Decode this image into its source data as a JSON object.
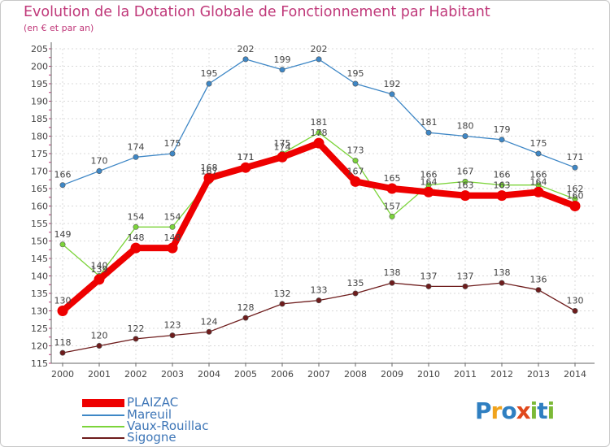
{
  "chart_data": {
    "type": "line",
    "title": "Evolution de la Dotation Globale de Fonctionnement par Habitant",
    "subtitle": "(en € et par an)",
    "x": [
      "2000",
      "2001",
      "2002",
      "2003",
      "2004",
      "2005",
      "2006",
      "2007",
      "2008",
      "2009",
      "2010",
      "2011",
      "2012",
      "2013",
      "2014"
    ],
    "ylim": [
      115,
      205
    ],
    "yticks": [
      115,
      120,
      125,
      130,
      135,
      140,
      145,
      150,
      155,
      160,
      165,
      170,
      175,
      180,
      185,
      190,
      195,
      200,
      205
    ],
    "grid": true,
    "series": [
      {
        "name": "PLAIZAC",
        "color": "#ee0000",
        "emphasis": true,
        "values": [
          130,
          139,
          148,
          148,
          168,
          171,
          174,
          178,
          167,
          165,
          164,
          163,
          163,
          164,
          160
        ]
      },
      {
        "name": "Mareuil",
        "color": "#3e87c6",
        "emphasis": false,
        "values": [
          166,
          170,
          174,
          175,
          195,
          202,
          199,
          202,
          195,
          192,
          181,
          180,
          179,
          175,
          171
        ]
      },
      {
        "name": "Vaux-Rouillac",
        "color": "#7cd43a",
        "emphasis": false,
        "values": [
          149,
          140,
          154,
          154,
          167,
          171,
          175,
          181,
          173,
          157,
          166,
          167,
          166,
          166,
          162
        ]
      },
      {
        "name": "Sigogne",
        "color": "#6e1c1c",
        "emphasis": false,
        "values": [
          118,
          120,
          122,
          123,
          124,
          128,
          132,
          133,
          135,
          138,
          137,
          137,
          138,
          136,
          130
        ]
      }
    ]
  },
  "legend": {
    "items": [
      {
        "name": "PLAIZAC",
        "color": "#ee0000"
      },
      {
        "name": "Mareuil",
        "color": "#3e87c6"
      },
      {
        "name": "Vaux-Rouillac",
        "color": "#7cd43a"
      },
      {
        "name": "Sigogne",
        "color": "#6e1c1c"
      }
    ]
  },
  "logo": {
    "text": "Proxiti",
    "letters": [
      {
        "ch": "P",
        "color": "#2f7fc1"
      },
      {
        "ch": "r",
        "color": "#f0a31c"
      },
      {
        "ch": "o",
        "color": "#2f7fc1"
      },
      {
        "ch": "x",
        "color": "#e0481c"
      },
      {
        "ch": "i",
        "color": "#7cb937"
      },
      {
        "ch": "t",
        "color": "#2f7fc1"
      },
      {
        "ch": "i",
        "color": "#7cb937"
      }
    ]
  }
}
